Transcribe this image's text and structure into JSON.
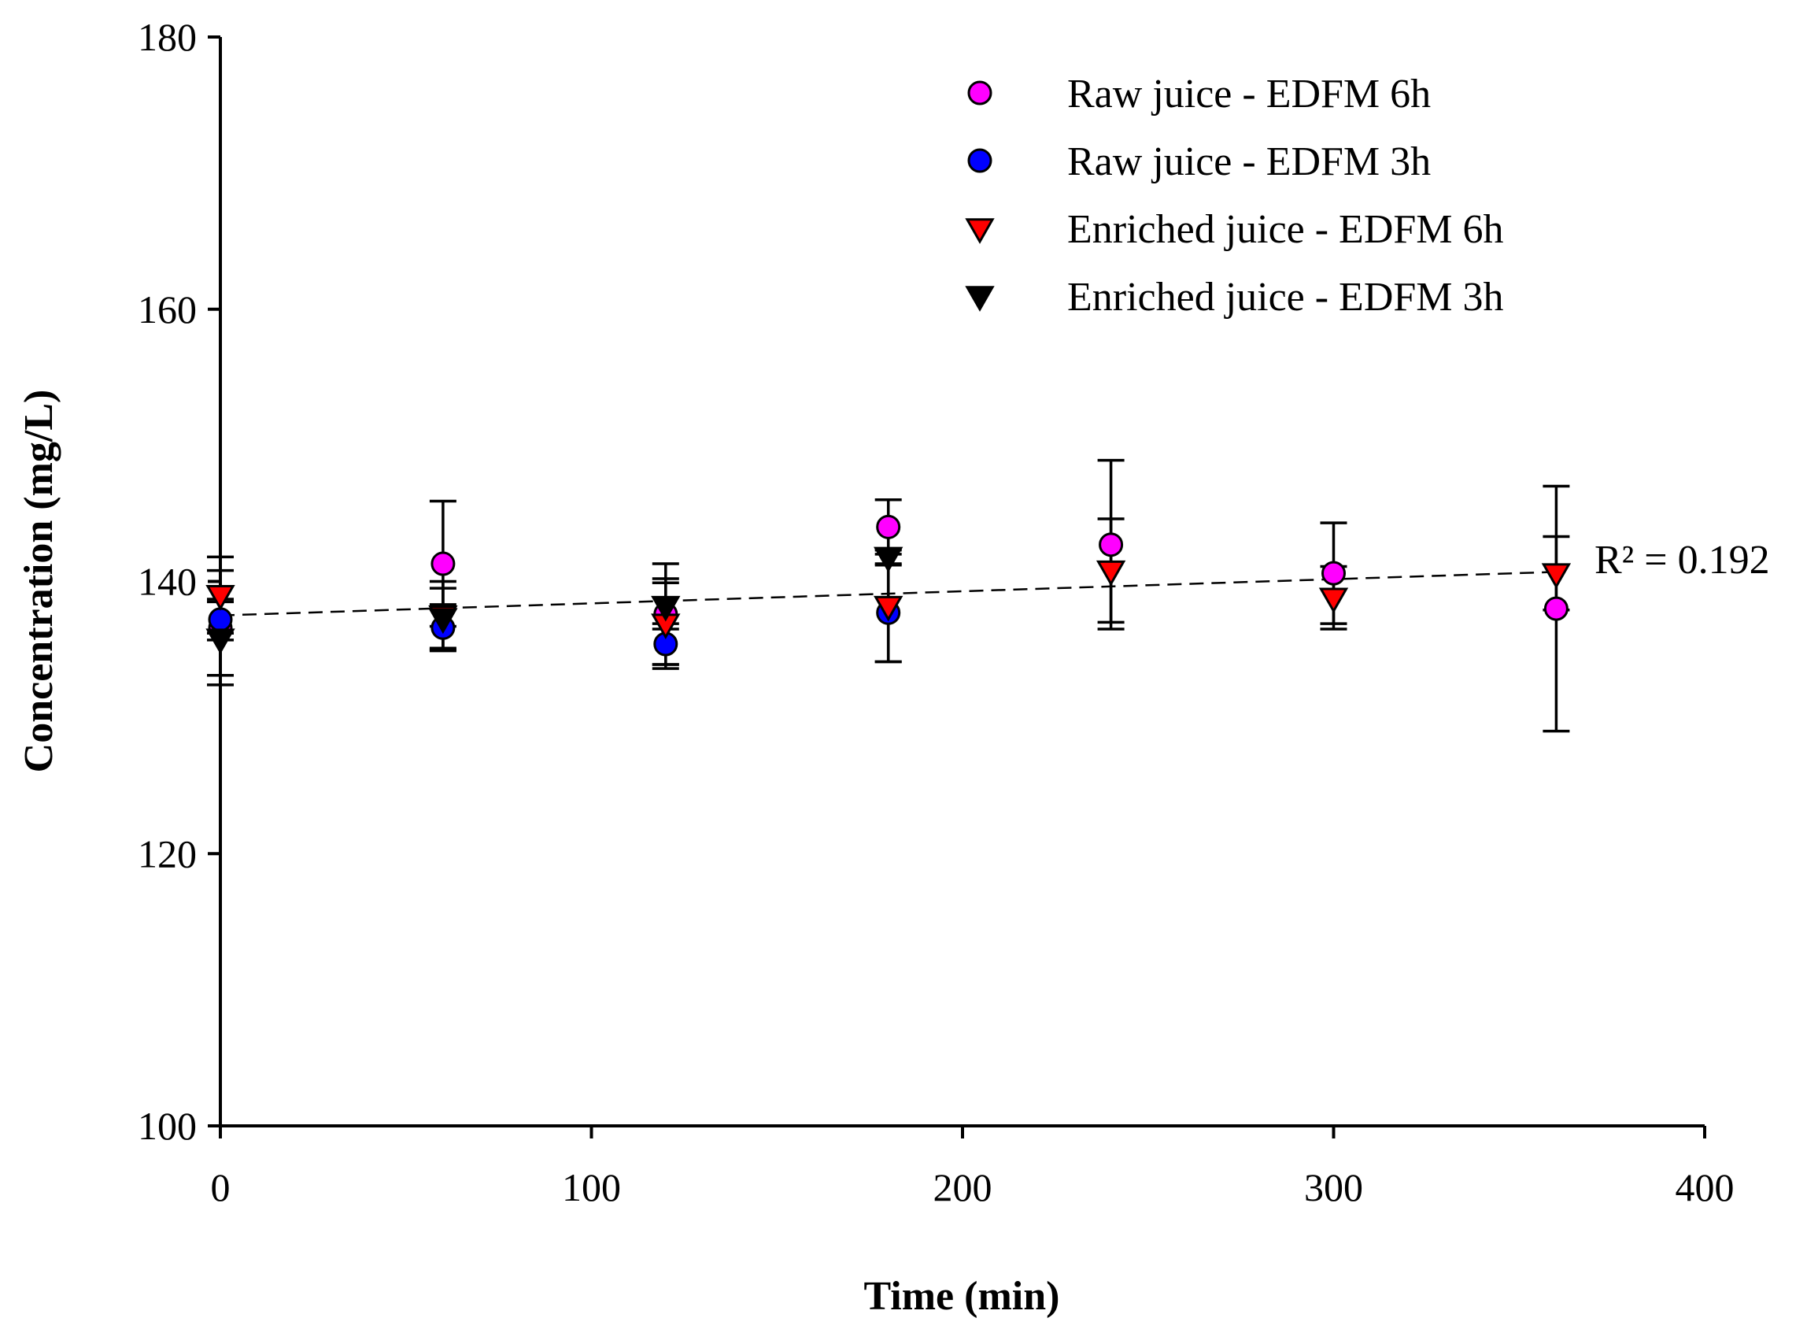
{
  "chart_data": {
    "type": "scatter",
    "title": "",
    "xlabel": "Time (min)",
    "ylabel": "Concentration (mg/L)",
    "xlim": [
      0,
      400
    ],
    "ylim": [
      100,
      180
    ],
    "xticks": [
      0,
      100,
      200,
      300,
      400
    ],
    "yticks": [
      100,
      120,
      140,
      160,
      180
    ],
    "xtick_labels": [
      "0",
      "100",
      "200",
      "300",
      "400"
    ],
    "ytick_labels": [
      "100",
      "120",
      "140",
      "160",
      "180"
    ],
    "grid": false,
    "legend_position": "top-right",
    "series": [
      {
        "name": "Raw juice - EDFM 6h",
        "marker": "circle",
        "color": "#ff00ff",
        "points": [
          {
            "x": 0,
            "y": 136.6,
            "err": 4.2
          },
          {
            "x": 60,
            "y": 141.3,
            "err": 4.6
          },
          {
            "x": 120,
            "y": 137.6,
            "err": 3.7
          },
          {
            "x": 180,
            "y": 144.0,
            "err": 2.0
          },
          {
            "x": 240,
            "y": 142.7,
            "err": 6.2
          },
          {
            "x": 300,
            "y": 140.6,
            "err": 3.7
          },
          {
            "x": 360,
            "y": 138.0,
            "err": 9.0
          }
        ]
      },
      {
        "name": "Raw juice - EDFM 3h",
        "marker": "circle",
        "color": "#0000ff",
        "points": [
          {
            "x": 0,
            "y": 137.2,
            "err": 1.5
          },
          {
            "x": 60,
            "y": 136.6,
            "err": 1.7
          },
          {
            "x": 120,
            "y": 135.4,
            "err": 1.5
          },
          {
            "x": 180,
            "y": 137.7,
            "err": 3.6
          }
        ]
      },
      {
        "name": "Enriched juice - EDFM 6h",
        "marker": "triangle-down",
        "color": "#ff0000",
        "points": [
          {
            "x": 0,
            "y": 139.0,
            "err": 2.8
          },
          {
            "x": 60,
            "y": 137.5,
            "err": 2.5
          },
          {
            "x": 120,
            "y": 136.9,
            "err": 3.3
          },
          {
            "x": 180,
            "y": 138.2,
            "err": 4.1
          },
          {
            "x": 240,
            "y": 140.8,
            "err": 3.8
          },
          {
            "x": 300,
            "y": 138.8,
            "err": 2.3
          },
          {
            "x": 360,
            "y": 140.6,
            "err": 2.7
          }
        ]
      },
      {
        "name": "Enriched juice - EDFM 3h",
        "marker": "triangle-down",
        "color": "#000000",
        "points": [
          {
            "x": 0,
            "y": 135.8,
            "err": 2.7
          },
          {
            "x": 60,
            "y": 137.3,
            "err": 2.2
          },
          {
            "x": 120,
            "y": 138.2,
            "err": 1.7
          },
          {
            "x": 180,
            "y": 141.8,
            "err": 0.6
          }
        ]
      }
    ],
    "trendline": {
      "style": "dashed",
      "x": [
        0,
        360
      ],
      "y": [
        137.5,
        140.7
      ],
      "label": "R² = 0.192"
    }
  }
}
